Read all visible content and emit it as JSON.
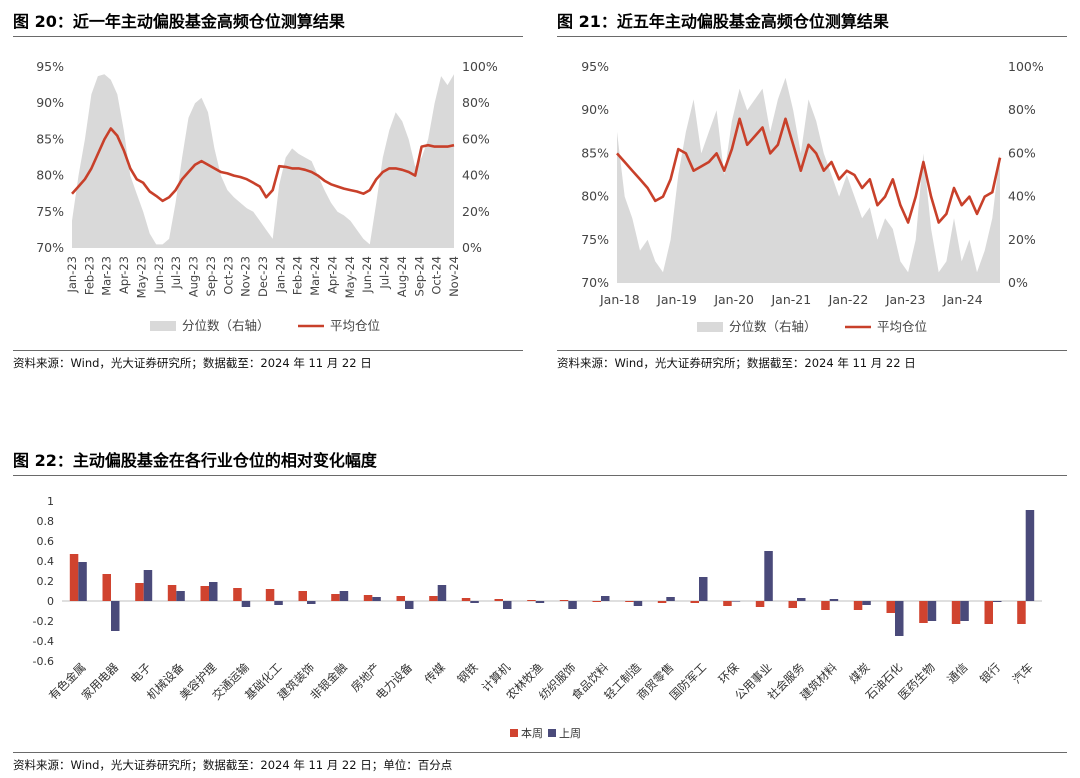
{
  "figures": {
    "fig20": {
      "title": "图 20：近一年主动偏股基金高频仓位测算结果",
      "source": "资料来源：Wind，光大证券研究所；数据截至：2024 年 11 月 22 日"
    },
    "fig21": {
      "title": "图 21：近五年主动偏股基金高频仓位测算结果",
      "source": "资料来源：Wind，光大证券研究所；数据截至：2024 年 11 月 22 日"
    },
    "fig22": {
      "title": "图 22：主动偏股基金在各行业仓位的相对变化幅度",
      "source": "资料来源：Wind，光大证券研究所；数据截至：2024 年 11 月 22 日；单位：百分点"
    }
  },
  "chart_data": [
    {
      "type": "area+line",
      "x_ticks": [
        "Jan-23",
        "Feb-23",
        "Mar-23",
        "Apr-23",
        "May-23",
        "Jun-23",
        "Jul-23",
        "Aug-23",
        "Sep-23",
        "Oct-23",
        "Nov-23",
        "Dec-23",
        "Jan-24",
        "Feb-24",
        "Mar-24",
        "Apr-24",
        "May-24",
        "Jun-24",
        "Jul-24",
        "Aug-24",
        "Sep-24",
        "Oct-24",
        "Nov-24"
      ],
      "y_left_ticks": [
        "70%",
        "75%",
        "80%",
        "85%",
        "90%",
        "95%"
      ],
      "y_left_range": [
        70,
        95
      ],
      "y_right_ticks": [
        "0%",
        "20%",
        "40%",
        "60%",
        "80%",
        "100%"
      ],
      "y_right_range": [
        0,
        100
      ],
      "legend": {
        "area": "分位数（右轴）",
        "line": "平均仓位"
      },
      "legend_position": "bottom",
      "colors": {
        "area": "#d9d9d9",
        "line": "#c8402a"
      },
      "series": [
        {
          "name": "分位数（右轴）",
          "axis": "right",
          "points": [
            [
              0,
              15
            ],
            [
              1,
              40
            ],
            [
              2,
              60
            ],
            [
              3,
              85
            ],
            [
              4,
              95
            ],
            [
              5,
              96
            ],
            [
              6,
              93
            ],
            [
              7,
              85
            ],
            [
              8,
              65
            ],
            [
              9,
              40
            ],
            [
              10,
              30
            ],
            [
              11,
              20
            ],
            [
              12,
              8
            ],
            [
              13,
              2
            ],
            [
              14,
              2
            ],
            [
              15,
              5
            ],
            [
              16,
              25
            ],
            [
              17,
              50
            ],
            [
              18,
              72
            ],
            [
              19,
              80
            ],
            [
              20,
              83
            ],
            [
              21,
              75
            ],
            [
              22,
              55
            ],
            [
              23,
              40
            ],
            [
              24,
              32
            ],
            [
              25,
              28
            ],
            [
              26,
              25
            ],
            [
              27,
              22
            ],
            [
              28,
              20
            ],
            [
              29,
              15
            ],
            [
              30,
              10
            ],
            [
              31,
              5
            ],
            [
              32,
              35
            ],
            [
              33,
              50
            ],
            [
              34,
              55
            ],
            [
              35,
              52
            ],
            [
              36,
              50
            ],
            [
              37,
              48
            ],
            [
              38,
              40
            ],
            [
              39,
              32
            ],
            [
              40,
              25
            ],
            [
              41,
              20
            ],
            [
              42,
              18
            ],
            [
              43,
              15
            ],
            [
              44,
              10
            ],
            [
              45,
              5
            ],
            [
              46,
              2
            ],
            [
              47,
              25
            ],
            [
              48,
              50
            ],
            [
              49,
              65
            ],
            [
              50,
              75
            ],
            [
              51,
              70
            ],
            [
              52,
              60
            ],
            [
              53,
              45
            ],
            [
              54,
              50
            ],
            [
              55,
              60
            ],
            [
              56,
              80
            ],
            [
              57,
              95
            ],
            [
              58,
              90
            ],
            [
              59,
              96
            ]
          ]
        },
        {
          "name": "平均仓位",
          "axis": "left",
          "points": [
            [
              0,
              77.5
            ],
            [
              1,
              78.5
            ],
            [
              2,
              79.5
            ],
            [
              3,
              81
            ],
            [
              4,
              83
            ],
            [
              5,
              85
            ],
            [
              6,
              86.5
            ],
            [
              7,
              85.5
            ],
            [
              8,
              83.5
            ],
            [
              9,
              81
            ],
            [
              10,
              79.5
            ],
            [
              11,
              79
            ],
            [
              12,
              77.8
            ],
            [
              13,
              77.2
            ],
            [
              14,
              76.5
            ],
            [
              15,
              77
            ],
            [
              16,
              78
            ],
            [
              17,
              79.5
            ],
            [
              18,
              80.5
            ],
            [
              19,
              81.5
            ],
            [
              20,
              82
            ],
            [
              21,
              81.5
            ],
            [
              22,
              81
            ],
            [
              23,
              80.5
            ],
            [
              24,
              80.3
            ],
            [
              25,
              80
            ],
            [
              26,
              79.8
            ],
            [
              27,
              79.5
            ],
            [
              28,
              79
            ],
            [
              29,
              78.5
            ],
            [
              30,
              77
            ],
            [
              31,
              78
            ],
            [
              32,
              81.3
            ],
            [
              33,
              81.2
            ],
            [
              34,
              81
            ],
            [
              35,
              81
            ],
            [
              36,
              80.8
            ],
            [
              37,
              80.5
            ],
            [
              38,
              80
            ],
            [
              39,
              79.3
            ],
            [
              40,
              78.8
            ],
            [
              41,
              78.5
            ],
            [
              42,
              78.2
            ],
            [
              43,
              78
            ],
            [
              44,
              77.8
            ],
            [
              45,
              77.5
            ],
            [
              46,
              78
            ],
            [
              47,
              79.5
            ],
            [
              48,
              80.5
            ],
            [
              49,
              81
            ],
            [
              50,
              81
            ],
            [
              51,
              80.8
            ],
            [
              52,
              80.5
            ],
            [
              53,
              80
            ],
            [
              54,
              84
            ],
            [
              55,
              84.2
            ],
            [
              56,
              84
            ],
            [
              57,
              84
            ],
            [
              58,
              84
            ],
            [
              59,
              84.2
            ]
          ]
        }
      ]
    },
    {
      "type": "area+line",
      "x_ticks": [
        "Jan-18",
        "Jan-19",
        "Jan-20",
        "Jan-21",
        "Jan-22",
        "Jan-23",
        "Jan-24"
      ],
      "y_left_ticks": [
        "70%",
        "75%",
        "80%",
        "85%",
        "90%",
        "95%"
      ],
      "y_left_range": [
        70,
        95
      ],
      "y_right_ticks": [
        "0%",
        "20%",
        "40%",
        "60%",
        "80%",
        "100%"
      ],
      "y_right_range": [
        0,
        100
      ],
      "legend": {
        "area": "分位数（右轴）",
        "line": "平均仓位"
      },
      "legend_position": "bottom",
      "colors": {
        "area": "#d9d9d9",
        "line": "#c8402a"
      },
      "series": [
        {
          "name": "分位数（右轴）",
          "axis": "right",
          "points": [
            [
              0,
              70
            ],
            [
              2,
              40
            ],
            [
              4,
              30
            ],
            [
              6,
              15
            ],
            [
              8,
              20
            ],
            [
              10,
              10
            ],
            [
              12,
              5
            ],
            [
              14,
              20
            ],
            [
              16,
              50
            ],
            [
              18,
              70
            ],
            [
              20,
              85
            ],
            [
              22,
              60
            ],
            [
              24,
              70
            ],
            [
              26,
              80
            ],
            [
              28,
              50
            ],
            [
              30,
              75
            ],
            [
              32,
              90
            ],
            [
              34,
              80
            ],
            [
              36,
              85
            ],
            [
              38,
              90
            ],
            [
              40,
              70
            ],
            [
              42,
              85
            ],
            [
              44,
              95
            ],
            [
              46,
              80
            ],
            [
              48,
              60
            ],
            [
              50,
              85
            ],
            [
              52,
              75
            ],
            [
              54,
              60
            ],
            [
              56,
              50
            ],
            [
              58,
              40
            ],
            [
              60,
              50
            ],
            [
              62,
              40
            ],
            [
              64,
              30
            ],
            [
              66,
              35
            ],
            [
              68,
              20
            ],
            [
              70,
              30
            ],
            [
              72,
              25
            ],
            [
              74,
              10
            ],
            [
              76,
              5
            ],
            [
              78,
              20
            ],
            [
              80,
              60
            ],
            [
              82,
              25
            ],
            [
              84,
              5
            ],
            [
              86,
              10
            ],
            [
              88,
              30
            ],
            [
              90,
              10
            ],
            [
              92,
              20
            ],
            [
              94,
              5
            ],
            [
              96,
              15
            ],
            [
              98,
              30
            ],
            [
              100,
              60
            ]
          ]
        },
        {
          "name": "平均仓位",
          "axis": "left",
          "points": [
            [
              0,
              85
            ],
            [
              2,
              84
            ],
            [
              4,
              83
            ],
            [
              6,
              82
            ],
            [
              8,
              81
            ],
            [
              10,
              79.5
            ],
            [
              12,
              80
            ],
            [
              14,
              82
            ],
            [
              16,
              85.5
            ],
            [
              18,
              85
            ],
            [
              20,
              83
            ],
            [
              22,
              83.5
            ],
            [
              24,
              84
            ],
            [
              26,
              85
            ],
            [
              28,
              83
            ],
            [
              30,
              85.5
            ],
            [
              32,
              89
            ],
            [
              34,
              86
            ],
            [
              36,
              87
            ],
            [
              38,
              88
            ],
            [
              40,
              85
            ],
            [
              42,
              86
            ],
            [
              44,
              89
            ],
            [
              46,
              86
            ],
            [
              48,
              83
            ],
            [
              50,
              86
            ],
            [
              52,
              85
            ],
            [
              54,
              83
            ],
            [
              56,
              84
            ],
            [
              58,
              82
            ],
            [
              60,
              83
            ],
            [
              62,
              82.5
            ],
            [
              64,
              81
            ],
            [
              66,
              82
            ],
            [
              68,
              79
            ],
            [
              70,
              80
            ],
            [
              72,
              82
            ],
            [
              74,
              79
            ],
            [
              76,
              77
            ],
            [
              78,
              80
            ],
            [
              80,
              84
            ],
            [
              82,
              80
            ],
            [
              84,
              77
            ],
            [
              86,
              78
            ],
            [
              88,
              81
            ],
            [
              90,
              79
            ],
            [
              92,
              80
            ],
            [
              94,
              78
            ],
            [
              96,
              80
            ],
            [
              98,
              80.5
            ],
            [
              100,
              84.5
            ]
          ]
        }
      ]
    },
    {
      "type": "bar",
      "categories": [
        "有色金属",
        "家用电器",
        "电子",
        "机械设备",
        "美容护理",
        "交通运输",
        "基础化工",
        "建筑装饰",
        "非银金融",
        "房地产",
        "电力设备",
        "传媒",
        "钢铁",
        "计算机",
        "农林牧渔",
        "纺织服饰",
        "食品饮料",
        "轻工制造",
        "商贸零售",
        "国防军工",
        "环保",
        "公用事业",
        "社会服务",
        "建筑材料",
        "煤炭",
        "石油石化",
        "医药生物",
        "通信",
        "银行",
        "汽车"
      ],
      "y_ticks": [
        "1",
        "0.8",
        "0.6",
        "0.4",
        "0.2",
        "0",
        "-0.2",
        "-0.4",
        "-0.6"
      ],
      "ylim": [
        -0.6,
        1
      ],
      "legend_position": "bottom",
      "series": [
        {
          "name": "本周",
          "color": "#d0432f",
          "values": [
            0.47,
            0.27,
            0.18,
            0.16,
            0.15,
            0.13,
            0.12,
            0.1,
            0.07,
            0.06,
            0.05,
            0.05,
            0.03,
            0.02,
            0.01,
            0.01,
            -0.01,
            -0.01,
            -0.02,
            -0.02,
            -0.05,
            -0.06,
            -0.07,
            -0.09,
            -0.09,
            -0.12,
            -0.22,
            -0.23,
            -0.23,
            -0.23
          ]
        },
        {
          "name": "上周",
          "color": "#4a4a7a",
          "values": [
            0.39,
            -0.3,
            0.31,
            0.1,
            0.19,
            -0.06,
            -0.04,
            -0.03,
            0.1,
            0.04,
            -0.08,
            0.16,
            -0.02,
            -0.08,
            -0.02,
            -0.08,
            0.05,
            -0.05,
            0.04,
            0.24,
            0,
            0.5,
            0.03,
            0.02,
            -0.04,
            -0.35,
            -0.2,
            -0.2,
            -0.01,
            0.91
          ]
        }
      ]
    }
  ]
}
